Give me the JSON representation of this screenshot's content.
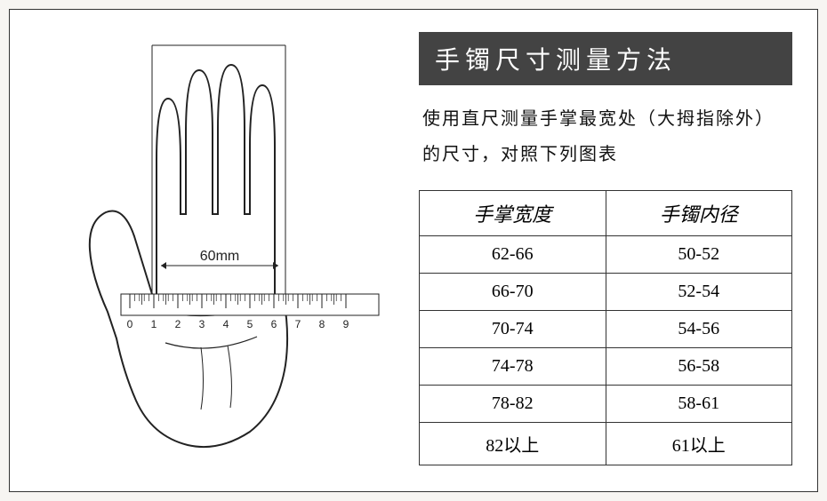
{
  "title": "手镯尺寸测量方法",
  "description": "使用直尺测量手掌最宽处（大拇指除外）的尺寸，对照下列图表",
  "measurement_label": "60mm",
  "ruler": {
    "start": 0,
    "end": 9
  },
  "table": {
    "headers": [
      "手掌宽度",
      "手镯内径"
    ],
    "rows": [
      [
        "62-66",
        "50-52"
      ],
      [
        "66-70",
        "52-54"
      ],
      [
        "70-74",
        "54-56"
      ],
      [
        "74-78",
        "56-58"
      ],
      [
        "78-82",
        "58-61"
      ],
      [
        "82以上",
        "61以上"
      ]
    ]
  },
  "colors": {
    "title_bg": "#434343",
    "title_fg": "#ffffff",
    "border": "#333333",
    "text": "#111111",
    "stroke": "#222222"
  }
}
